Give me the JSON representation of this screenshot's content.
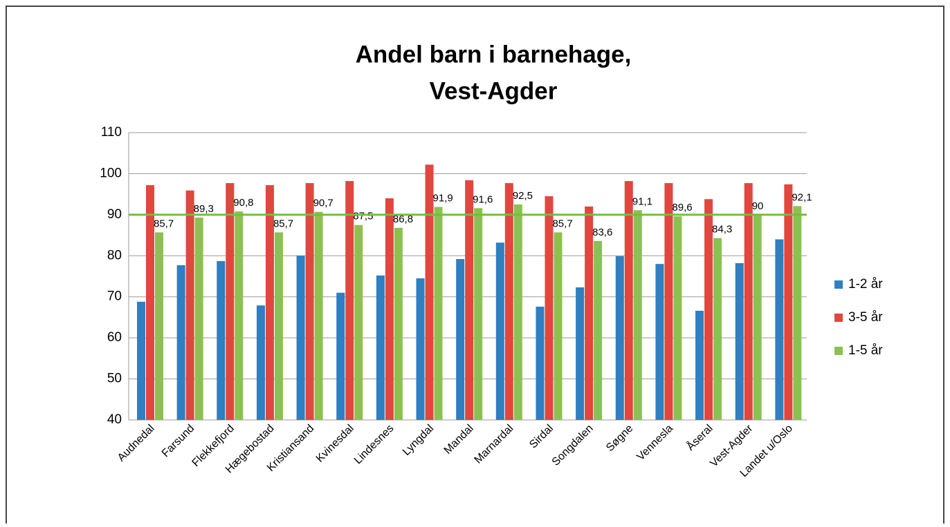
{
  "chart_data": {
    "type": "bar",
    "title": [
      "Andel barn i barnehage,",
      "Vest-Agder"
    ],
    "categories": [
      "Audnedal",
      "Farsund",
      "Flekkefjord",
      "Hægebostad",
      "Kristiansand",
      "Kvinesdal",
      "Lindesnes",
      "Lyngdal",
      "Mandal",
      "Marnardal",
      "Sirdal",
      "Songdalen",
      "Søgne",
      "Vennesla",
      "Åseral",
      "Vest-Agder",
      "Landet u/Oslo"
    ],
    "series": [
      {
        "name": "1-2 år",
        "color": "#2f7fc1",
        "values": [
          68.8,
          77.7,
          78.7,
          67.9,
          80.0,
          71.0,
          75.2,
          74.5,
          79.2,
          83.2,
          67.6,
          72.3,
          79.9,
          78.0,
          66.6,
          78.2,
          84.0
        ]
      },
      {
        "name": "3-5 år",
        "color": "#e0473f",
        "values": [
          97.2,
          95.9,
          97.7,
          97.2,
          97.7,
          98.2,
          94.0,
          102.2,
          98.4,
          97.7,
          94.5,
          92.0,
          98.2,
          97.7,
          93.8,
          97.7,
          97.4
        ]
      },
      {
        "name": "1-5 år",
        "color": "#8cc152",
        "values": [
          85.7,
          89.3,
          90.8,
          85.7,
          90.7,
          87.5,
          86.8,
          91.9,
          91.6,
          92.5,
          85.7,
          83.6,
          91.1,
          89.6,
          84.3,
          90,
          92.1
        ],
        "value_labels": [
          "85,7",
          "89,3",
          "90,8",
          "85,7",
          "90,7",
          "87,5",
          "86,8",
          "91,9",
          "91,6",
          "92,5",
          "85,7",
          "83,6",
          "91,1",
          "89,6",
          "84,3",
          "90",
          "92,1"
        ]
      }
    ],
    "reference_line": {
      "value": 90,
      "color": "#6fbf3f"
    },
    "ylim": [
      40,
      110
    ],
    "yticks": [
      40,
      50,
      60,
      70,
      80,
      90,
      100,
      110
    ],
    "grid": true,
    "legend": "right"
  }
}
